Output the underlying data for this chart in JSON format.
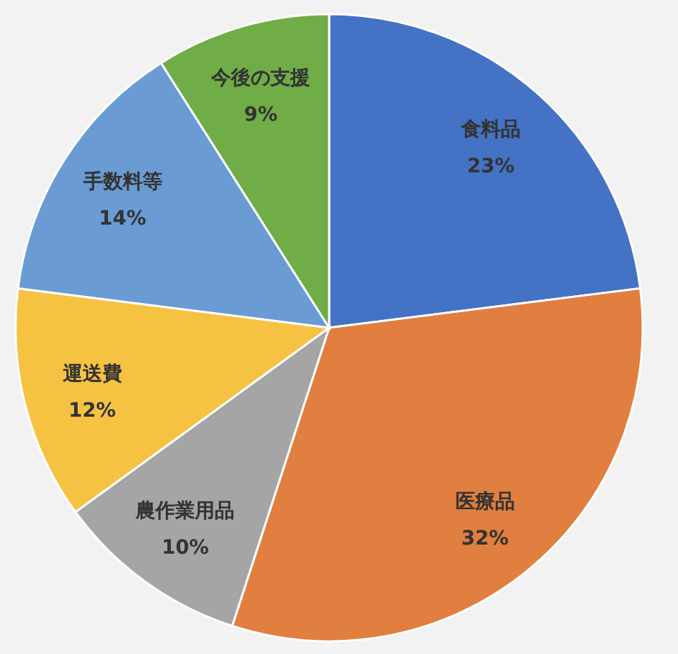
{
  "chart_data": {
    "type": "pie",
    "categories": [
      "食料品",
      "医療品",
      "農作業用品",
      "運送費",
      "手数料等",
      "今後の支援"
    ],
    "values": [
      23,
      32,
      10,
      12,
      14,
      9
    ],
    "colors": [
      "#4472c4",
      "#e07f3f",
      "#a5a5a5",
      "#f5c242",
      "#6a9bd3",
      "#70ad47"
    ],
    "value_labels": [
      "23%",
      "32%",
      "10%",
      "12%",
      "14%",
      "9%"
    ]
  }
}
